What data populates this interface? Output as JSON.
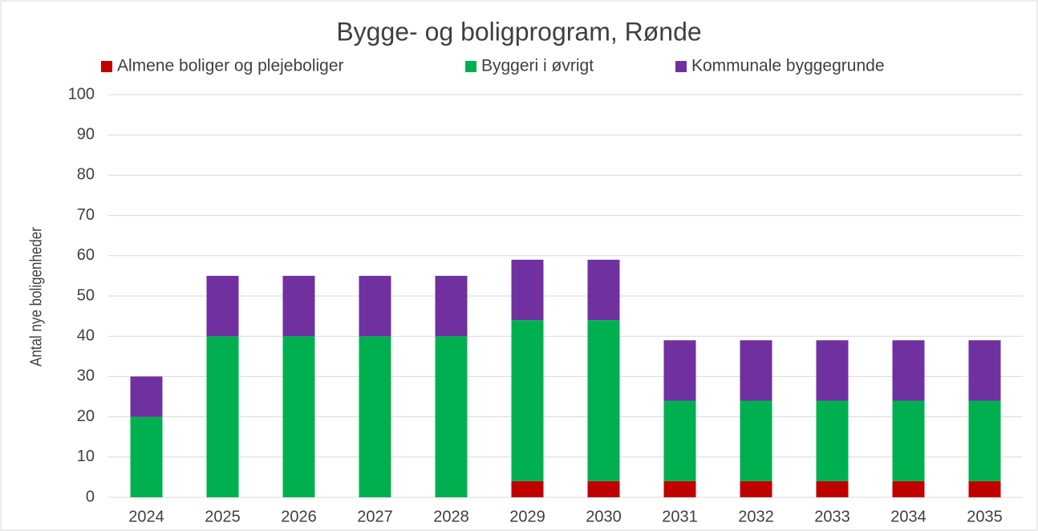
{
  "chart_data": {
    "type": "bar",
    "stacked": true,
    "title": "Bygge- og boligprogram, Rønde",
    "y_label": "Antal nye boligenheder",
    "categories": [
      "2024",
      "2025",
      "2026",
      "2027",
      "2028",
      "2029",
      "2030",
      "2031",
      "2032",
      "2033",
      "2034",
      "2035"
    ],
    "series": [
      {
        "name": "Almene boliger og plejeboliger",
        "color": "#c00000",
        "values": [
          0,
          0,
          0,
          0,
          0,
          4,
          4,
          4,
          4,
          4,
          4,
          4
        ]
      },
      {
        "name": "Byggeri i øvrigt",
        "color": "#00b050",
        "values": [
          20,
          40,
          40,
          40,
          40,
          40,
          40,
          20,
          20,
          20,
          20,
          20
        ]
      },
      {
        "name": "Kommunale byggegrunde",
        "color": "#7030a0",
        "values": [
          10,
          15,
          15,
          15,
          15,
          15,
          15,
          15,
          15,
          15,
          15,
          15
        ]
      }
    ],
    "ylim": [
      0,
      100
    ],
    "yticks": [
      0,
      10,
      20,
      30,
      40,
      50,
      60,
      70,
      80,
      90,
      100
    ],
    "grid": true,
    "legend": "top"
  }
}
